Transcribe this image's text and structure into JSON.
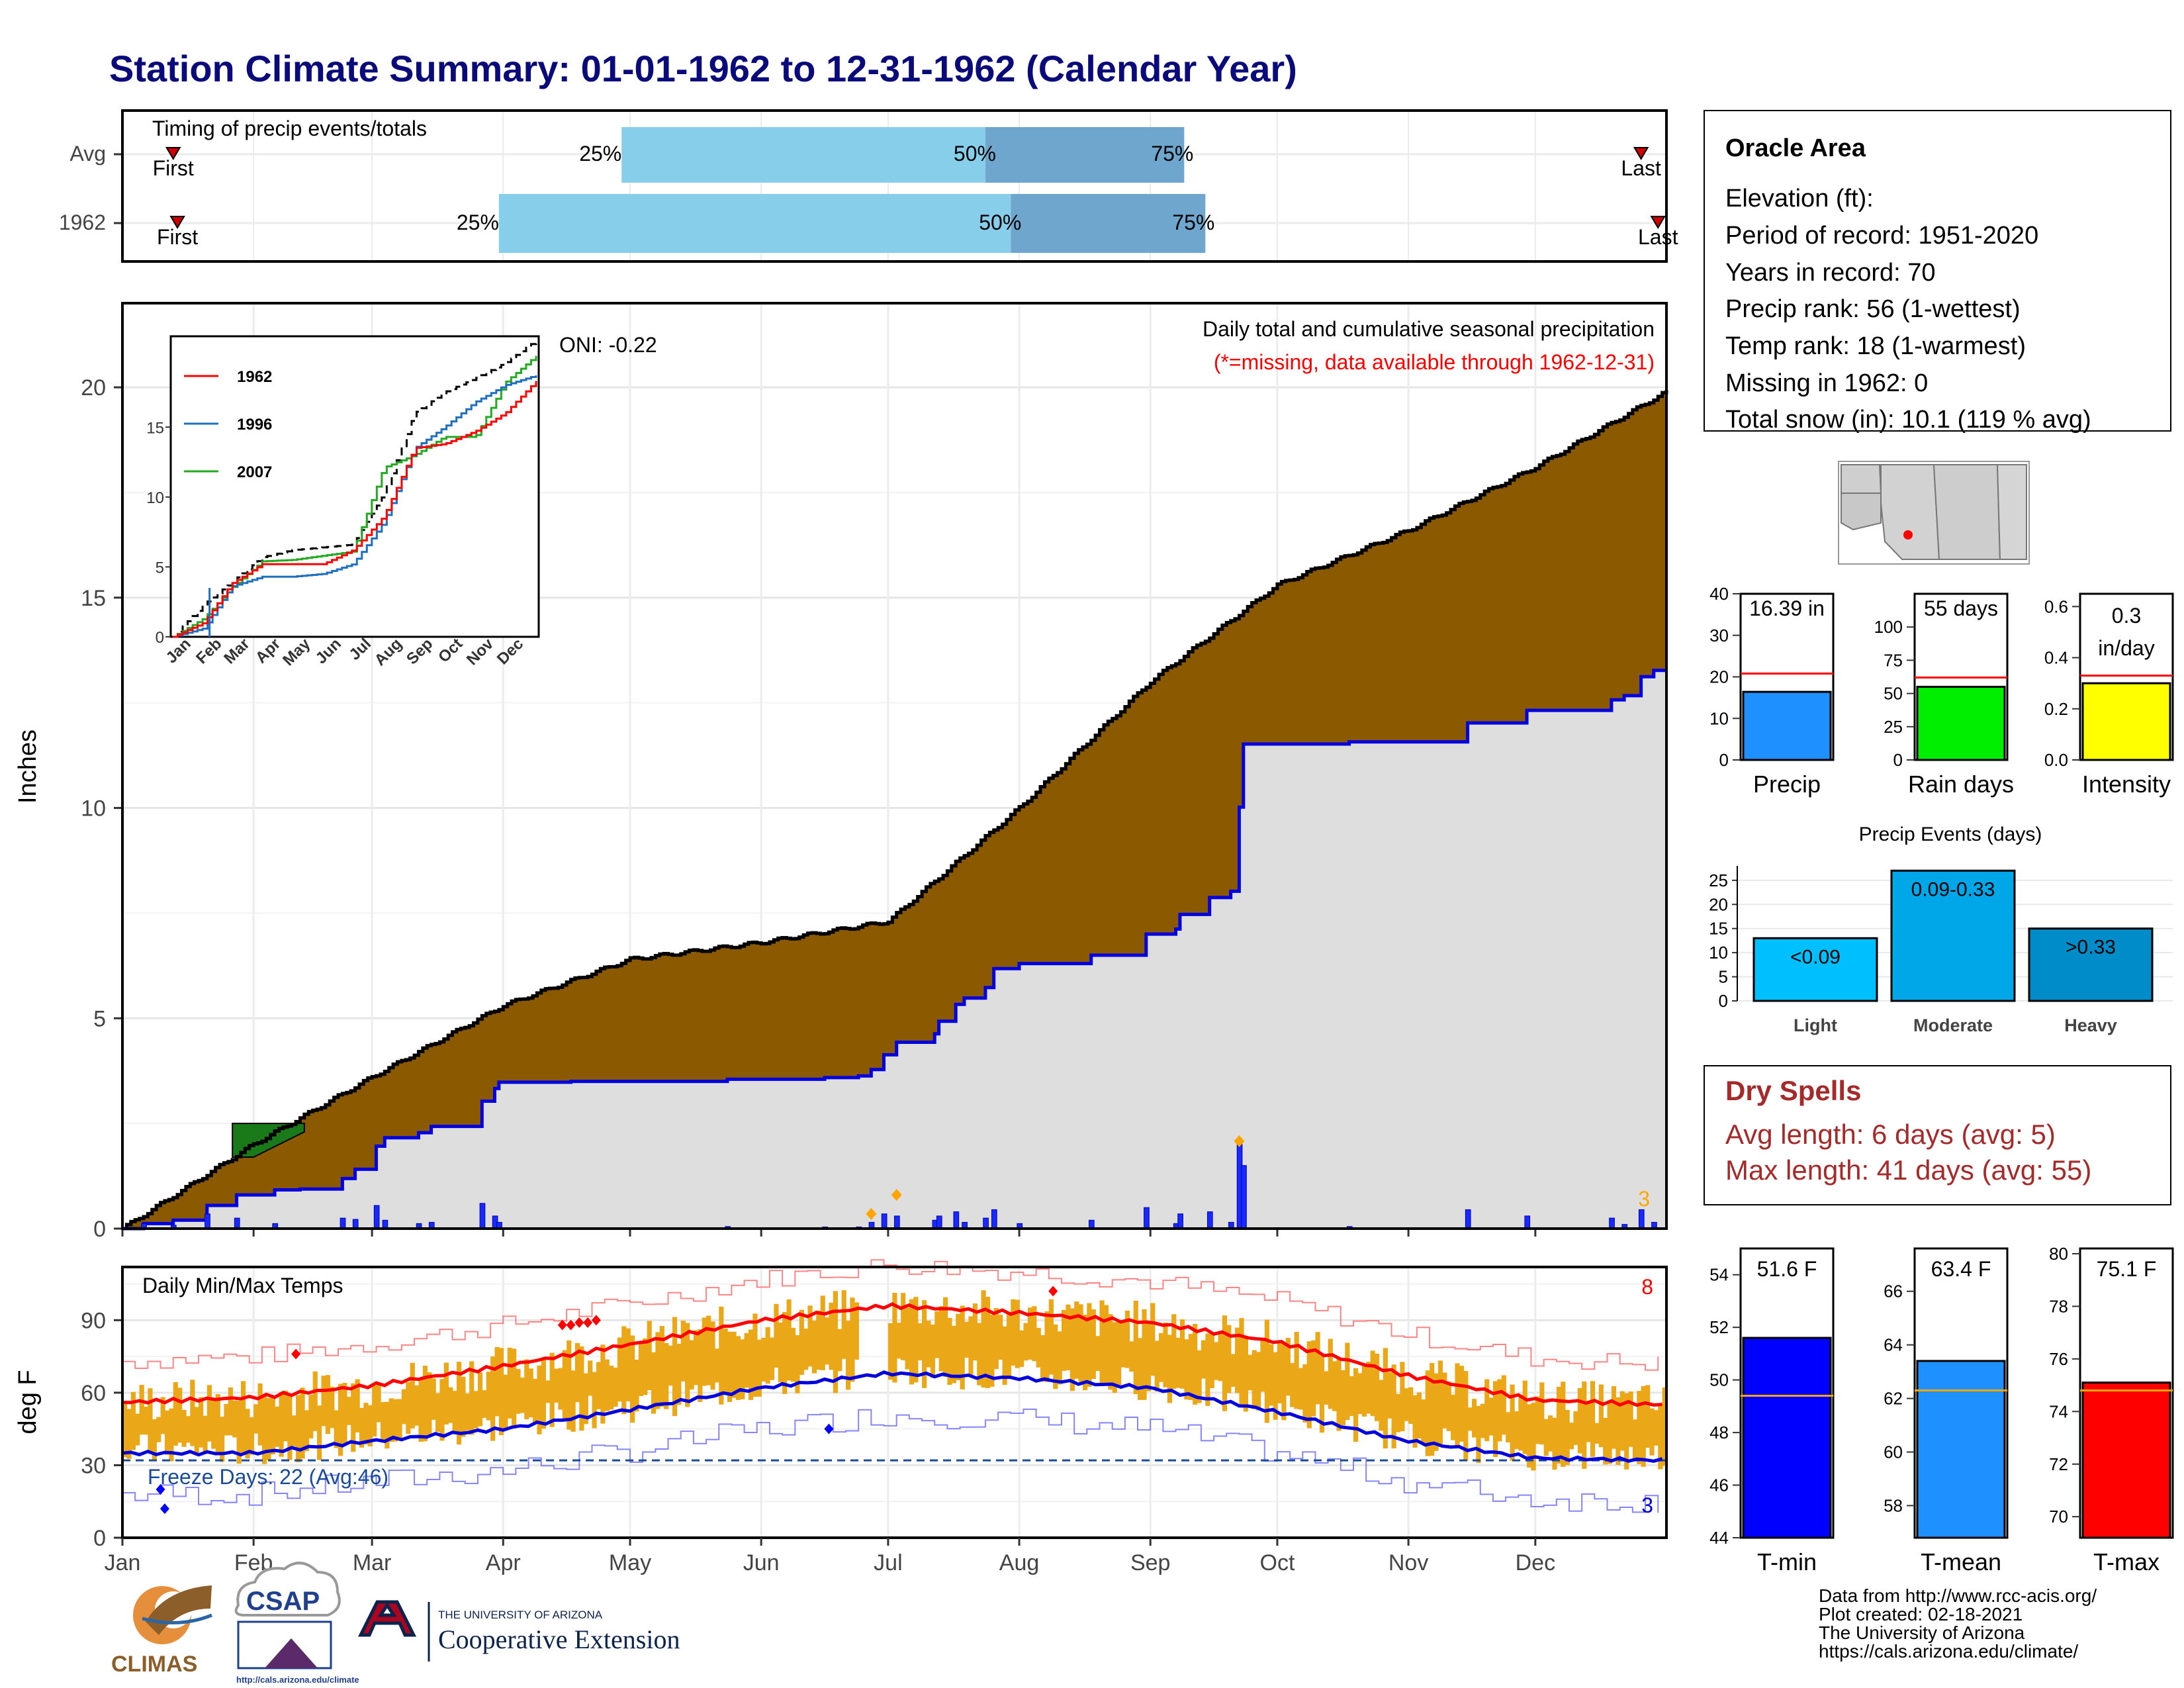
{
  "title": "Station Climate Summary: 01-01-1962 to 12-31-1962 (Calendar Year)",
  "colors": {
    "title": "#0a0a7a",
    "precip_fill": "#8b5a00",
    "gray_fill": "#dedede",
    "blue_line": "#0000e0",
    "wet_fill": "#1a7a1a",
    "temp_bar": "#eaa818",
    "tmax_line": "#ff0000",
    "tmin_line": "#0000dd",
    "q_light": "#87ceeb",
    "q_dark": "#6ea6cd",
    "dry_spell": "#a52a2a"
  },
  "timing": {
    "title": "Timing of precip events/totals",
    "rows": [
      {
        "label": "Avg",
        "first": "First",
        "last": "Last",
        "q25": "25%",
        "q50": "50%",
        "q75": "75%",
        "first_doy": 12,
        "q25_doy": 118,
        "q50_doy": 204,
        "q75_doy": 251,
        "last_doy": 359
      },
      {
        "label": "1962",
        "first": "First",
        "last": "Last",
        "q25": "25%",
        "q50": "50%",
        "q75": "75%",
        "first_doy": 13,
        "q25_doy": 89,
        "q50_doy": 210,
        "q75_doy": 256,
        "last_doy": 363
      }
    ]
  },
  "precip_panel": {
    "ylabel": "Inches",
    "header": "Daily total and cumulative seasonal precipitation",
    "missing_note": "(*=missing, data available through 1962-12-31)",
    "oni": "ONI: -0.22",
    "corner_count": "3",
    "y_ticks": [
      "0",
      "5",
      "10",
      "15",
      "20"
    ],
    "ylim": [
      0,
      22
    ]
  },
  "inset": {
    "legend": [
      "1962",
      "1996",
      "2007"
    ],
    "legend_colors": [
      "#ff0000",
      "#1f6fbf",
      "#22aa22"
    ],
    "y_ticks": [
      "0",
      "5",
      "10",
      "15"
    ],
    "x_ticks": [
      "Jan",
      "Feb",
      "Mar",
      "Apr",
      "May",
      "Jun",
      "Jul",
      "Aug",
      "Sep",
      "Oct",
      "Nov",
      "Dec"
    ]
  },
  "temp_panel": {
    "ylabel": "deg F",
    "title": "Daily Min/Max Temps",
    "freeze": "Freeze Days: 22 (Avg:46)",
    "count_top": "8",
    "count_bottom": "3",
    "y_ticks": [
      "0",
      "30",
      "60",
      "90"
    ],
    "ylim": [
      0,
      112
    ]
  },
  "months": [
    "Jan",
    "Feb",
    "Mar",
    "Apr",
    "May",
    "Jun",
    "Jul",
    "Aug",
    "Sep",
    "Oct",
    "Nov",
    "Dec"
  ],
  "station": {
    "name": "Oracle Area",
    "lines": [
      "Elevation (ft):",
      "Period of record: 1951-2020",
      "Years in record: 70",
      "Precip rank: 56 (1-wettest)",
      "Temp rank: 18 (1-warmest)",
      "Missing in 1962: 0",
      "Total snow (in): 10.1 (119 % avg)"
    ]
  },
  "mini_bars": [
    {
      "label": "Precip",
      "value_text": "16.39 in",
      "value": 16.39,
      "avg": 20.8,
      "ylim": [
        0,
        40
      ],
      "ticks": [
        "0",
        "10",
        "20",
        "30",
        "40"
      ],
      "color": "#1e90ff"
    },
    {
      "label": "Rain days",
      "value_text": "55 days",
      "value": 55,
      "avg": 62,
      "ylim": [
        0,
        125
      ],
      "ticks": [
        "0",
        "25",
        "50",
        "75",
        "100"
      ],
      "color": "#00ee00"
    },
    {
      "label": "Intensity",
      "value_text": "0.3 in/day",
      "value": 0.3,
      "avg": 0.33,
      "ylim": [
        0,
        0.65
      ],
      "ticks": [
        "0.0",
        "0.2",
        "0.4",
        "0.6"
      ],
      "color": "#ffff00"
    }
  ],
  "events": {
    "title": "Precip Events (days)",
    "bars": [
      {
        "label": "Light",
        "text": "<0.09",
        "value": 13,
        "color": "#00bfff"
      },
      {
        "label": "Moderate",
        "text": "0.09-0.33",
        "value": 27,
        "color": "#00a7e8"
      },
      {
        "label": "Heavy",
        "text": ">0.33",
        "value": 15,
        "color": "#008cc8"
      }
    ],
    "ticks": [
      "0",
      "5",
      "10",
      "15",
      "20",
      "25"
    ]
  },
  "dry_spells": {
    "title": "Dry Spells",
    "avg": "Avg length: 6 days (avg: 5)",
    "max": "Max length: 41 days (avg: 55)"
  },
  "temp_bars": [
    {
      "label": "T-min",
      "value_text": "51.6 F",
      "value": 51.6,
      "avg": 49.4,
      "ylim": [
        44,
        55
      ],
      "ticks": [
        "44",
        "46",
        "48",
        "50",
        "52",
        "54"
      ],
      "color": "#0000ff"
    },
    {
      "label": "T-mean",
      "value_text": "63.4 F",
      "value": 63.4,
      "avg": 62.3,
      "ylim": [
        56.8,
        67.6
      ],
      "ticks": [
        "58",
        "60",
        "62",
        "64",
        "66"
      ],
      "color": "#1e90ff"
    },
    {
      "label": "T-max",
      "value_text": "75.1 F",
      "value": 75.1,
      "avg": 74.8,
      "ylim": [
        69.2,
        80.2
      ],
      "ticks": [
        "70",
        "72",
        "74",
        "76",
        "78",
        "80"
      ],
      "color": "#ff0000"
    }
  ],
  "footer": {
    "lines": [
      "Data from http://www.rcc-acis.org/",
      "Plot created: 02-18-2021",
      "The University of Arizona",
      "https://cals.arizona.edu/climate/"
    ],
    "climas": "CLIMAS",
    "csap": "CSAP",
    "csap_url": "http://cals.arizona.edu/climate",
    "ua_small": "THE UNIVERSITY OF ARIZONA",
    "ua_big": "Cooperative Extension"
  },
  "chart_data": [
    {
      "type": "area",
      "title": "Daily total and cumulative seasonal precipitation",
      "ylabel": "Inches",
      "ylim": [
        0,
        22
      ],
      "x": [
        "Jan 1",
        "Feb 1",
        "Mar 1",
        "Apr 1",
        "May 1",
        "Jun 1",
        "Jul 1",
        "Aug 1",
        "Sep 1",
        "Oct 1",
        "Nov 1",
        "Dec 1",
        "Dec 31"
      ],
      "series": [
        {
          "name": "Avg cumulative",
          "values": [
            0,
            2.0,
            3.6,
            5.3,
            6.4,
            6.8,
            7.3,
            10.0,
            13.0,
            15.3,
            16.6,
            18.1,
            19.9
          ]
        },
        {
          "name": "1962 cumulative",
          "values": [
            0,
            1.0,
            3.8,
            5.2,
            5.2,
            5.2,
            6.2,
            8.6,
            9.5,
            13.8,
            13.8,
            14.7,
            16.39
          ]
        }
      ]
    },
    {
      "type": "line",
      "title": "Daily Min/Max Temps",
      "ylabel": "deg F",
      "ylim": [
        0,
        112
      ],
      "x": [
        "Jan",
        "Feb",
        "Mar",
        "Apr",
        "May",
        "Jun",
        "Jul",
        "Aug",
        "Sep",
        "Oct",
        "Nov",
        "Dec"
      ],
      "series": [
        {
          "name": "Avg max",
          "values": [
            56,
            60,
            64,
            72,
            80,
            90,
            96,
            93,
            89,
            80,
            66,
            57
          ]
        },
        {
          "name": "Avg min",
          "values": [
            35,
            37,
            40,
            46,
            54,
            62,
            68,
            66,
            62,
            52,
            40,
            33
          ]
        }
      ]
    },
    {
      "type": "bar",
      "title": "Precip Events (days)",
      "categories": [
        "Light",
        "Moderate",
        "Heavy"
      ],
      "values": [
        13,
        27,
        15
      ]
    }
  ]
}
